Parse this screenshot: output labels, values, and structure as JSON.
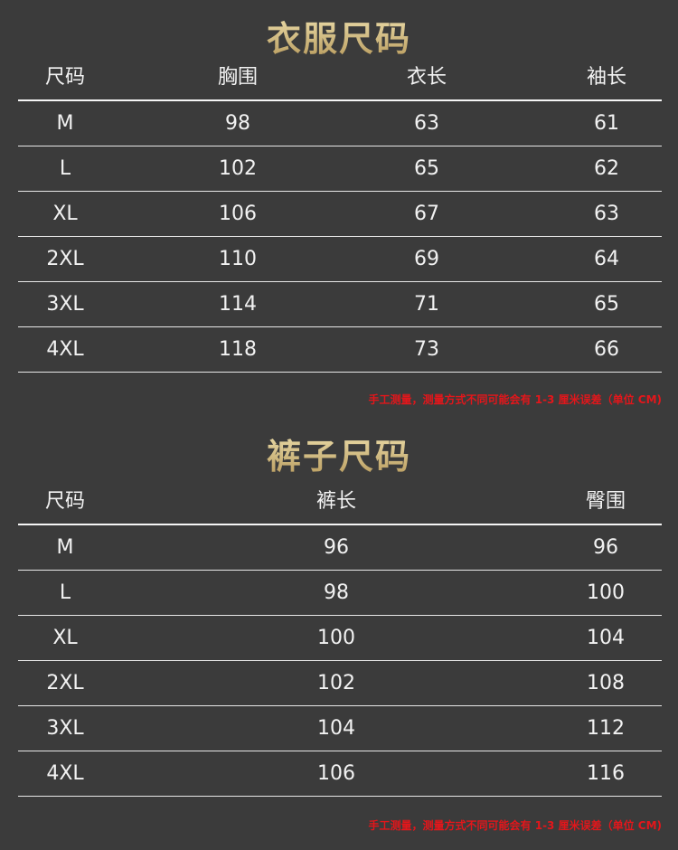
{
  "tops": {
    "title": "衣服尺码",
    "headers": [
      "尺码",
      "胸围",
      "衣长",
      "袖长"
    ],
    "rows": [
      [
        "M",
        "98",
        "63",
        "61"
      ],
      [
        "L",
        "102",
        "65",
        "62"
      ],
      [
        "XL",
        "106",
        "67",
        "63"
      ],
      [
        "2XL",
        "110",
        "69",
        "64"
      ],
      [
        "3XL",
        "114",
        "71",
        "65"
      ],
      [
        "4XL",
        "118",
        "73",
        "66"
      ]
    ],
    "note": "手工测量，测量方式不同可能会有 1-3 厘米误差（单位 CM)"
  },
  "pants": {
    "title": "裤子尺码",
    "headers": [
      "尺码",
      "裤长",
      "臀围"
    ],
    "rows": [
      [
        "M",
        "96",
        "96"
      ],
      [
        "L",
        "98",
        "100"
      ],
      [
        "XL",
        "100",
        "104"
      ],
      [
        "2XL",
        "102",
        "108"
      ],
      [
        "3XL",
        "104",
        "112"
      ],
      [
        "4XL",
        "106",
        "116"
      ]
    ],
    "note": "手工测量，测量方式不同可能会有 1-3 厘米误差（单位 CM)"
  },
  "colors": {
    "background": "#3b3b3b",
    "title_gold": "#d9c48f",
    "note_red": "#e3161b"
  }
}
